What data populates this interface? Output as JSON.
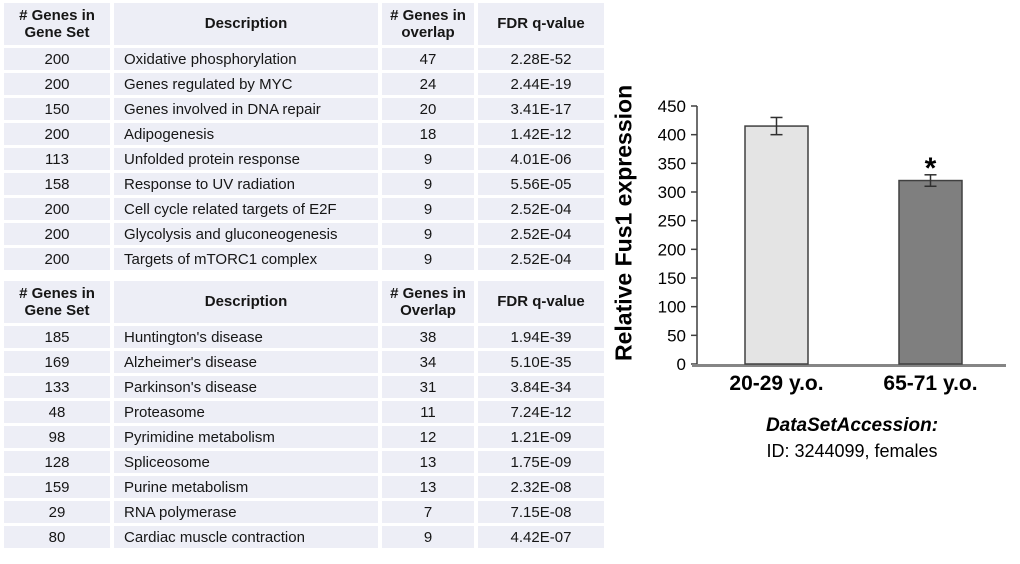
{
  "tables": [
    {
      "headers": [
        "# Genes in Gene Set",
        "Description",
        "# Genes in overlap",
        "FDR q-value"
      ],
      "rows": [
        [
          "200",
          "Oxidative phosphorylation",
          "47",
          "2.28E-52"
        ],
        [
          "200",
          "Genes regulated by MYC",
          "24",
          "2.44E-19"
        ],
        [
          "150",
          "Genes involved in DNA repair",
          "20",
          "3.41E-17"
        ],
        [
          "200",
          "Adipogenesis",
          "18",
          "1.42E-12"
        ],
        [
          "113",
          "Unfolded protein response",
          "9",
          "4.01E-06"
        ],
        [
          "158",
          "Response to UV radiation",
          "9",
          "5.56E-05"
        ],
        [
          "200",
          "Cell cycle related targets of E2F",
          "9",
          "2.52E-04"
        ],
        [
          "200",
          "Glycolysis and gluconeogenesis",
          "9",
          "2.52E-04"
        ],
        [
          "200",
          "Targets of mTORC1 complex",
          "9",
          "2.52E-04"
        ]
      ]
    },
    {
      "headers": [
        "# Genes in Gene Set",
        "Description",
        "# Genes in Overlap",
        "FDR q-value"
      ],
      "rows": [
        [
          "185",
          "Huntington's disease",
          "38",
          "1.94E-39"
        ],
        [
          "169",
          "Alzheimer's disease",
          "34",
          "5.10E-35"
        ],
        [
          "133",
          "Parkinson's disease",
          "31",
          "3.84E-34"
        ],
        [
          "48",
          "Proteasome",
          "11",
          "7.24E-12"
        ],
        [
          "98",
          "Pyrimidine metabolism",
          "12",
          "1.21E-09"
        ],
        [
          "128",
          "Spliceosome",
          "13",
          "1.75E-09"
        ],
        [
          "159",
          "Purine metabolism",
          "13",
          "2.32E-08"
        ],
        [
          "29",
          "RNA polymerase",
          "7",
          "7.15E-08"
        ],
        [
          "80",
          "Cardiac muscle contraction",
          "9",
          "4.42E-07"
        ]
      ]
    }
  ],
  "chart_data": {
    "type": "bar",
    "title": "",
    "ylabel": "Relative Fus1 expression",
    "xlabel": "",
    "categories": [
      "20-29 y.o.",
      "65-71 y.o."
    ],
    "values": [
      415,
      320
    ],
    "errors": [
      15,
      10
    ],
    "significance": [
      "",
      "*"
    ],
    "ylim": [
      0,
      450
    ],
    "ytick_step": 50,
    "grid": false,
    "legend_position": "none",
    "bar_fills": [
      "#e4e4e4",
      "#7f7f7f"
    ],
    "bar_stroke": "#404040",
    "axis_color": "#3f3f3f",
    "baseline_color": "#858585",
    "caption_title": "DataSetAccession:",
    "caption_sub": "ID: 3244099, females"
  }
}
